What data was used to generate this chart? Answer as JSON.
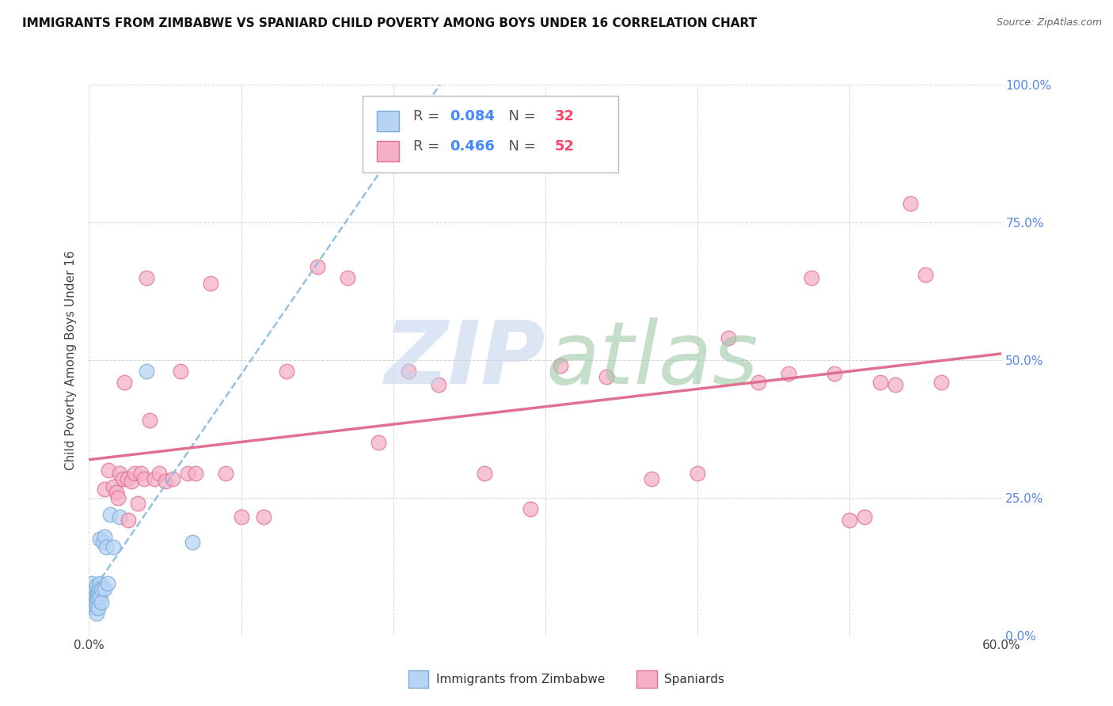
{
  "title": "IMMIGRANTS FROM ZIMBABWE VS SPANIARD CHILD POVERTY AMONG BOYS UNDER 16 CORRELATION CHART",
  "source": "Source: ZipAtlas.com",
  "ylabel": "Child Poverty Among Boys Under 16",
  "x_min": 0.0,
  "x_max": 0.6,
  "y_min": 0.0,
  "y_max": 1.0,
  "x_ticks": [
    0.0,
    0.1,
    0.2,
    0.3,
    0.4,
    0.5,
    0.6
  ],
  "y_ticks": [
    0.0,
    0.25,
    0.5,
    0.75,
    1.0
  ],
  "y_right_labels": [
    "0.0%",
    "25.0%",
    "50.0%",
    "75.0%",
    "100.0%"
  ],
  "legend_r1": "0.084",
  "legend_n1": "32",
  "legend_r2": "0.466",
  "legend_n2": "52",
  "color_zimbabwe_fill": "#b8d4f5",
  "color_zimbabwe_edge": "#7aaad4",
  "color_spaniards_fill": "#f5b0c8",
  "color_spaniards_edge": "#e07090",
  "color_line_zimbabwe": "#88bbdd",
  "color_line_spaniards": "#e07090",
  "color_right_axis": "#5588ee",
  "color_r_value": "#4488ff",
  "color_n_value": "#ff4466",
  "watermark_zip_color": "#c5d5ee",
  "watermark_atlas_color": "#9fc8a8",
  "zimbabwe_x": [
    0.002,
    0.002,
    0.003,
    0.003,
    0.003,
    0.004,
    0.004,
    0.004,
    0.004,
    0.005,
    0.005,
    0.005,
    0.005,
    0.005,
    0.006,
    0.006,
    0.006,
    0.007,
    0.007,
    0.007,
    0.008,
    0.008,
    0.009,
    0.01,
    0.01,
    0.011,
    0.012,
    0.014,
    0.016,
    0.02,
    0.038,
    0.068
  ],
  "zimbabwe_y": [
    0.095,
    0.075,
    0.065,
    0.06,
    0.055,
    0.085,
    0.07,
    0.06,
    0.05,
    0.09,
    0.075,
    0.065,
    0.055,
    0.04,
    0.085,
    0.065,
    0.05,
    0.175,
    0.095,
    0.07,
    0.085,
    0.06,
    0.17,
    0.18,
    0.085,
    0.16,
    0.095,
    0.22,
    0.16,
    0.215,
    0.48,
    0.17
  ],
  "spaniards_x": [
    0.01,
    0.013,
    0.016,
    0.018,
    0.019,
    0.02,
    0.022,
    0.023,
    0.025,
    0.026,
    0.028,
    0.03,
    0.032,
    0.034,
    0.036,
    0.038,
    0.04,
    0.043,
    0.046,
    0.05,
    0.055,
    0.06,
    0.065,
    0.07,
    0.08,
    0.09,
    0.1,
    0.115,
    0.13,
    0.15,
    0.17,
    0.19,
    0.21,
    0.23,
    0.26,
    0.29,
    0.31,
    0.34,
    0.37,
    0.4,
    0.42,
    0.44,
    0.46,
    0.475,
    0.49,
    0.5,
    0.51,
    0.52,
    0.53,
    0.54,
    0.55,
    0.56
  ],
  "spaniards_y": [
    0.265,
    0.3,
    0.27,
    0.26,
    0.25,
    0.295,
    0.285,
    0.46,
    0.285,
    0.21,
    0.28,
    0.295,
    0.24,
    0.295,
    0.285,
    0.65,
    0.39,
    0.285,
    0.295,
    0.28,
    0.285,
    0.48,
    0.295,
    0.295,
    0.64,
    0.295,
    0.215,
    0.215,
    0.48,
    0.67,
    0.65,
    0.35,
    0.48,
    0.455,
    0.295,
    0.23,
    0.49,
    0.47,
    0.285,
    0.295,
    0.54,
    0.46,
    0.475,
    0.65,
    0.475,
    0.21,
    0.215,
    0.46,
    0.455,
    0.785,
    0.655,
    0.46
  ]
}
